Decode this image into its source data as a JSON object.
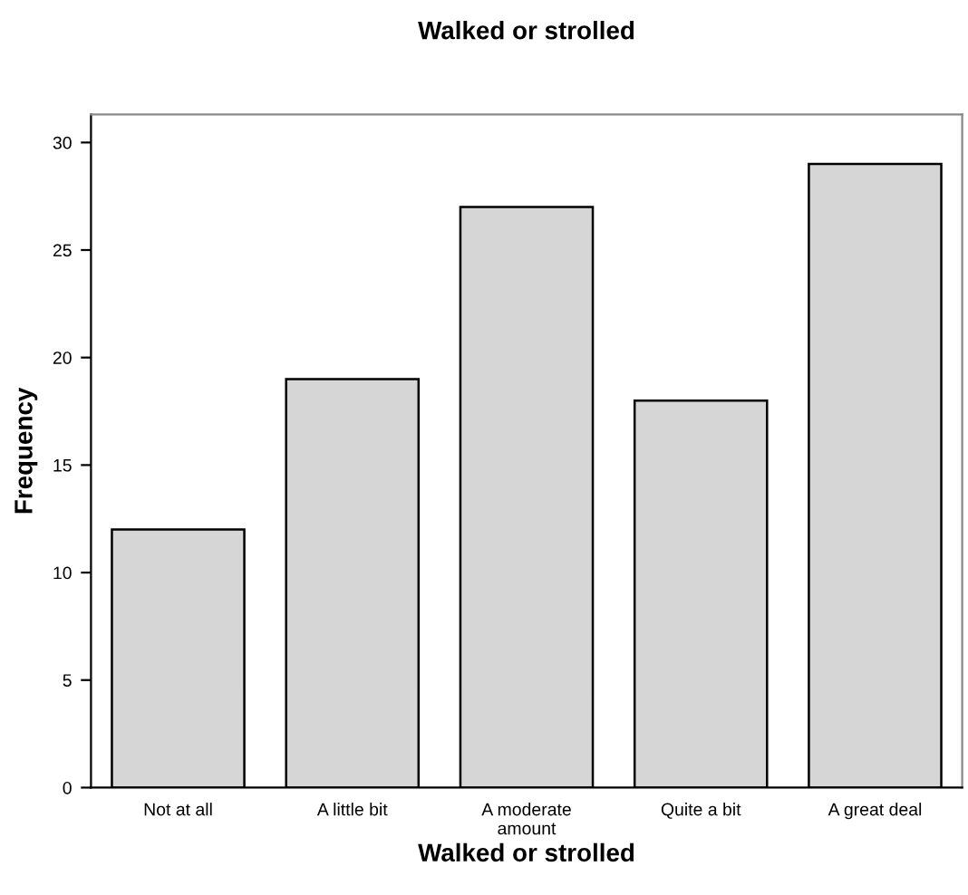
{
  "chart_data": {
    "type": "bar",
    "title": "Walked or strolled",
    "xlabel": "Walked or strolled",
    "ylabel": "Frequency",
    "categories": [
      "Not at all",
      "A little bit",
      "A moderate amount",
      "Quite a bit",
      "A great deal"
    ],
    "values": [
      12,
      19,
      27,
      18,
      29
    ],
    "color": "#d6d6d6",
    "ylim": [
      0,
      31.3
    ],
    "yticks": [
      0,
      5,
      10,
      15,
      20,
      25,
      30
    ],
    "grid": false
  }
}
